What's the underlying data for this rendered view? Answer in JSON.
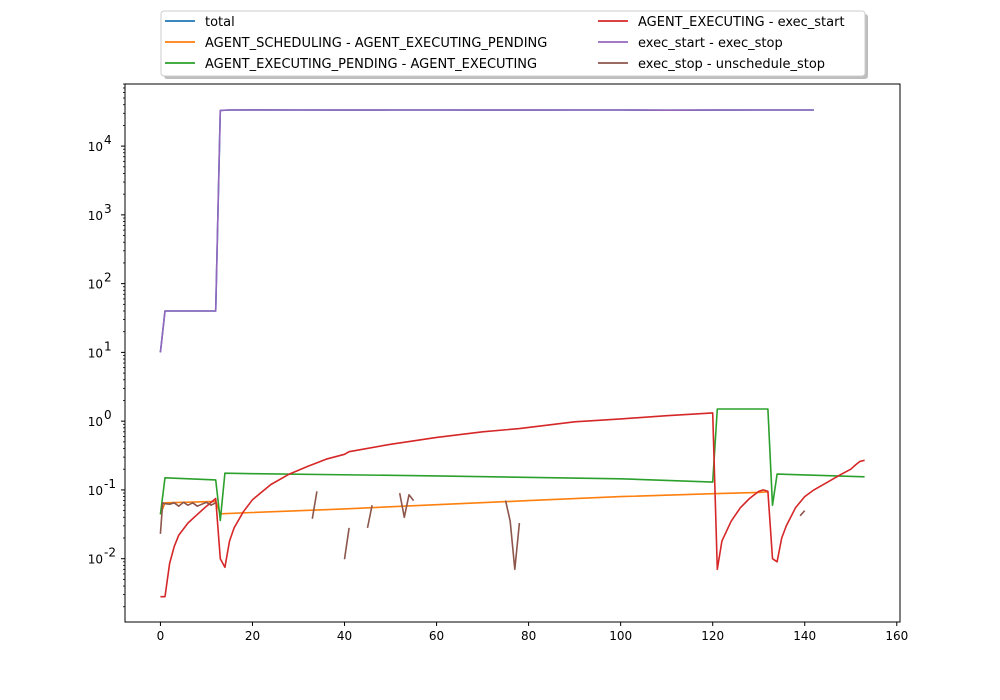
{
  "chart_data": {
    "type": "line",
    "title": "",
    "xlabel": "",
    "ylabel": "",
    "y_scale": "log",
    "xlim": [
      -7.7,
      160.7
    ],
    "ylim": [
      0.0012,
      80000
    ],
    "grid": false,
    "legend_placement": "top-center",
    "x_ticks": [
      0,
      20,
      40,
      60,
      80,
      100,
      120,
      140,
      160
    ],
    "x_tick_labels": [
      "0",
      "20",
      "40",
      "60",
      "80",
      "100",
      "120",
      "140",
      "160"
    ],
    "y_ticks": [
      0.01,
      0.1,
      1,
      10,
      100,
      1000,
      10000
    ],
    "series": [
      {
        "name": "total",
        "color": "#1f77b4",
        "x": [
          0,
          1,
          12,
          13,
          15,
          20,
          30,
          40,
          50,
          60,
          70,
          80,
          90,
          100,
          110,
          120,
          130,
          142
        ],
        "y": [
          10,
          40,
          40,
          33000,
          33500,
          33600,
          33500,
          33400,
          33500,
          33500,
          33400,
          33400,
          33500,
          33500,
          33300,
          33400,
          33500,
          33500
        ]
      },
      {
        "name": "AGENT_SCHEDULING - AGENT_EXECUTING_PENDING",
        "color": "#ff7f0e",
        "x": [
          0,
          1,
          12,
          13,
          20,
          40,
          60,
          80,
          100,
          120,
          130,
          132
        ],
        "y": [
          0.044,
          0.065,
          0.068,
          0.045,
          0.047,
          0.053,
          0.061,
          0.07,
          0.08,
          0.088,
          0.092,
          0.094
        ]
      },
      {
        "name": "AGENT_EXECUTING_PENDING - AGENT_EXECUTING",
        "color": "#2ca02c",
        "x": [
          0,
          1,
          12,
          13,
          14,
          20,
          60,
          100,
          120,
          121,
          132,
          133,
          134,
          153
        ],
        "y": [
          0.044,
          0.15,
          0.14,
          0.036,
          0.175,
          0.172,
          0.16,
          0.145,
          0.13,
          1.5,
          1.5,
          0.06,
          0.17,
          0.155
        ]
      },
      {
        "name": "AGENT_EXECUTING - exec_start",
        "color": "#d62728",
        "x": [
          0,
          1,
          2,
          3,
          4,
          6,
          8,
          10,
          12,
          13,
          14,
          15,
          16,
          18,
          20,
          24,
          28,
          32,
          36,
          40,
          41,
          50,
          60,
          70,
          78,
          90,
          100,
          110,
          120,
          121,
          122,
          124,
          126,
          128,
          130,
          131,
          132,
          133,
          134,
          135,
          136,
          138,
          140,
          142,
          145,
          148,
          150,
          151,
          152,
          153
        ],
        "y": [
          0.0028,
          0.0028,
          0.0085,
          0.015,
          0.022,
          0.033,
          0.044,
          0.058,
          0.075,
          0.01,
          0.0075,
          0.018,
          0.028,
          0.048,
          0.072,
          0.12,
          0.17,
          0.22,
          0.28,
          0.33,
          0.36,
          0.46,
          0.58,
          0.7,
          0.78,
          0.98,
          1.08,
          1.2,
          1.32,
          0.007,
          0.018,
          0.035,
          0.055,
          0.075,
          0.095,
          0.1,
          0.095,
          0.01,
          0.009,
          0.02,
          0.03,
          0.055,
          0.08,
          0.1,
          0.13,
          0.17,
          0.2,
          0.23,
          0.26,
          0.27
        ]
      },
      {
        "name": "exec_start - exec_stop",
        "color": "#9467bd",
        "x": [
          0,
          1,
          12,
          13,
          15,
          20,
          30,
          40,
          50,
          60,
          70,
          80,
          90,
          100,
          110,
          120,
          130,
          142
        ],
        "y": [
          10,
          40,
          40,
          33000,
          33500,
          33600,
          33500,
          33400,
          33500,
          33500,
          33400,
          33400,
          33500,
          33500,
          33300,
          33400,
          33500,
          33500
        ]
      },
      {
        "name": "exec_stop - unschedule_stop",
        "color": "#8c564b",
        "x": [
          0,
          0.5,
          1,
          2,
          3,
          4,
          5,
          6,
          7,
          8,
          9,
          10,
          11,
          12
        ],
        "y": [
          0.023,
          0.065,
          0.063,
          0.062,
          0.065,
          0.058,
          0.066,
          0.06,
          0.065,
          0.058,
          0.062,
          0.066,
          0.06,
          0.065
        ]
      }
    ],
    "segments": [
      {
        "series": "exec_stop - unschedule_stop",
        "x": [
          33,
          34
        ],
        "y": [
          0.038,
          0.095
        ]
      },
      {
        "series": "exec_stop - unschedule_stop",
        "x": [
          40,
          41
        ],
        "y": [
          0.0098,
          0.028
        ]
      },
      {
        "series": "exec_stop - unschedule_stop",
        "x": [
          45,
          46
        ],
        "y": [
          0.028,
          0.06
        ]
      },
      {
        "series": "exec_stop - unschedule_stop",
        "x": [
          52,
          53,
          54,
          55
        ],
        "y": [
          0.09,
          0.04,
          0.085,
          0.07
        ]
      },
      {
        "series": "exec_stop - unschedule_stop",
        "x": [
          75,
          76,
          77,
          78
        ],
        "y": [
          0.07,
          0.035,
          0.007,
          0.033
        ]
      },
      {
        "series": "exec_stop - unschedule_stop",
        "x": [
          139,
          140
        ],
        "y": [
          0.042,
          0.05
        ]
      }
    ]
  }
}
